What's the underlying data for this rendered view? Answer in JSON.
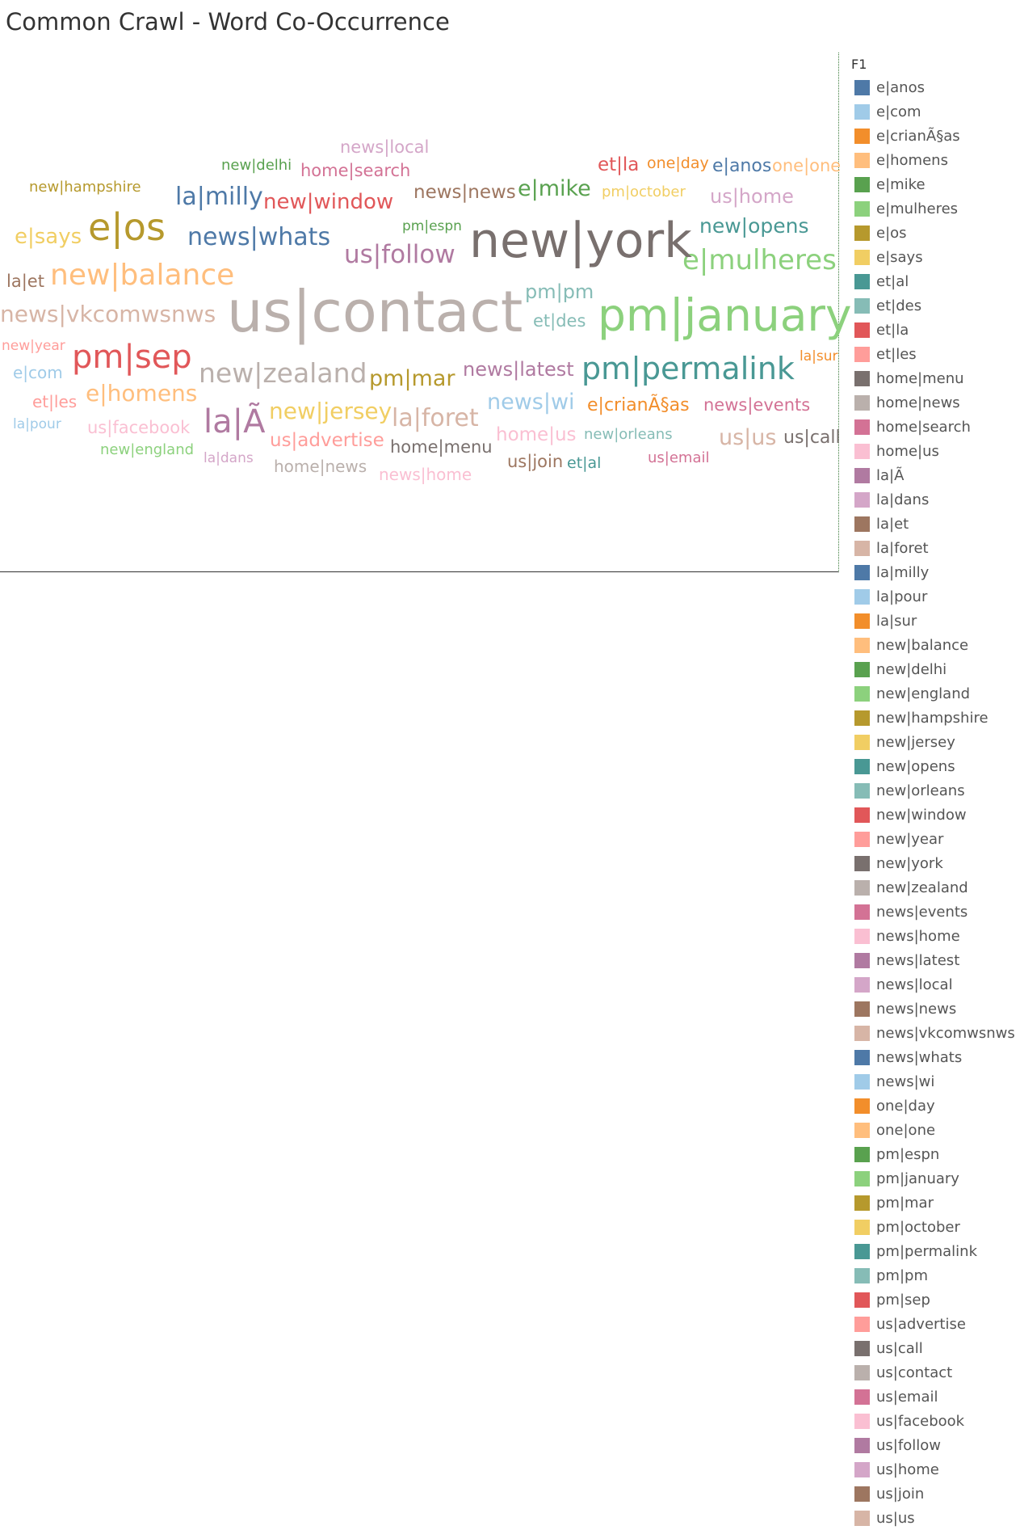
{
  "title": "Common Crawl - Word Co-Occurrence",
  "legend_title": "F1",
  "chart_data": {
    "type": "word-cloud",
    "title": "Common Crawl - Word Co-Occurrence",
    "legend": {
      "title": "F1",
      "placement": "right"
    },
    "words": [
      {
        "text": "e|anos",
        "color": "#4e79a7",
        "weight": 22
      },
      {
        "text": "e|com",
        "color": "#a0cbe8",
        "weight": 20
      },
      {
        "text": "e|crianÃ§as",
        "color": "#f28e2b",
        "weight": 22
      },
      {
        "text": "e|homens",
        "color": "#ffbe7d",
        "weight": 28
      },
      {
        "text": "e|mike",
        "color": "#59a14f",
        "weight": 27
      },
      {
        "text": "e|mulheres",
        "color": "#8cd17d",
        "weight": 34
      },
      {
        "text": "e|os",
        "color": "#b6992d",
        "weight": 46
      },
      {
        "text": "e|says",
        "color": "#f1ce63",
        "weight": 26
      },
      {
        "text": "et|al",
        "color": "#499894",
        "weight": 19
      },
      {
        "text": "et|des",
        "color": "#86bcb6",
        "weight": 21
      },
      {
        "text": "et|la",
        "color": "#e15759",
        "weight": 23
      },
      {
        "text": "et|les",
        "color": "#ff9d9a",
        "weight": 20
      },
      {
        "text": "home|menu",
        "color": "#79706e",
        "weight": 21
      },
      {
        "text": "home|news",
        "color": "#bab0ac",
        "weight": 20
      },
      {
        "text": "home|search",
        "color": "#d37295",
        "weight": 21
      },
      {
        "text": "home|us",
        "color": "#fabfd2",
        "weight": 23
      },
      {
        "text": "la|Ã",
        "color": "#b07aa1",
        "weight": 40
      },
      {
        "text": "la|dans",
        "color": "#d4a6c8",
        "weight": 17
      },
      {
        "text": "la|et",
        "color": "#9d7660",
        "weight": 21
      },
      {
        "text": "la|foret",
        "color": "#d7b5a6",
        "weight": 30
      },
      {
        "text": "la|milly",
        "color": "#4e79a7",
        "weight": 30
      },
      {
        "text": "la|pour",
        "color": "#a0cbe8",
        "weight": 17
      },
      {
        "text": "la|sur",
        "color": "#f28e2b",
        "weight": 17
      },
      {
        "text": "new|balance",
        "color": "#ffbe7d",
        "weight": 36
      },
      {
        "text": "new|delhi",
        "color": "#59a14f",
        "weight": 18
      },
      {
        "text": "new|england",
        "color": "#8cd17d",
        "weight": 18
      },
      {
        "text": "new|hampshire",
        "color": "#b6992d",
        "weight": 18
      },
      {
        "text": "new|jersey",
        "color": "#f1ce63",
        "weight": 28
      },
      {
        "text": "new|opens",
        "color": "#499894",
        "weight": 25
      },
      {
        "text": "new|orleans",
        "color": "#86bcb6",
        "weight": 18
      },
      {
        "text": "new|window",
        "color": "#e15759",
        "weight": 26
      },
      {
        "text": "new|year",
        "color": "#ff9d9a",
        "weight": 17
      },
      {
        "text": "new|york",
        "color": "#79706e",
        "weight": 60
      },
      {
        "text": "new|zealand",
        "color": "#bab0ac",
        "weight": 33
      },
      {
        "text": "news|events",
        "color": "#d37295",
        "weight": 21
      },
      {
        "text": "news|home",
        "color": "#fabfd2",
        "weight": 20
      },
      {
        "text": "news|latest",
        "color": "#b07aa1",
        "weight": 24
      },
      {
        "text": "news|local",
        "color": "#d4a6c8",
        "weight": 21
      },
      {
        "text": "news|news",
        "color": "#9d7660",
        "weight": 23
      },
      {
        "text": "news|vkcomwsnws",
        "color": "#d7b5a6",
        "weight": 28
      },
      {
        "text": "news|whats",
        "color": "#4e79a7",
        "weight": 30
      },
      {
        "text": "news|wi",
        "color": "#a0cbe8",
        "weight": 27
      },
      {
        "text": "one|day",
        "color": "#f28e2b",
        "weight": 19
      },
      {
        "text": "one|one",
        "color": "#ffbe7d",
        "weight": 21
      },
      {
        "text": "pm|espn",
        "color": "#59a14f",
        "weight": 17
      },
      {
        "text": "pm|january",
        "color": "#8cd17d",
        "weight": 55
      },
      {
        "text": "pm|mar",
        "color": "#b6992d",
        "weight": 27
      },
      {
        "text": "pm|october",
        "color": "#f1ce63",
        "weight": 18
      },
      {
        "text": "pm|permalink",
        "color": "#499894",
        "weight": 38
      },
      {
        "text": "pm|pm",
        "color": "#86bcb6",
        "weight": 24
      },
      {
        "text": "pm|sep",
        "color": "#e15759",
        "weight": 40
      },
      {
        "text": "us|advertise",
        "color": "#ff9d9a",
        "weight": 23
      },
      {
        "text": "us|call",
        "color": "#79706e",
        "weight": 22
      },
      {
        "text": "us|contact",
        "color": "#bab0ac",
        "weight": 70
      },
      {
        "text": "us|email",
        "color": "#d37295",
        "weight": 18
      },
      {
        "text": "us|facebook",
        "color": "#fabfd2",
        "weight": 21
      },
      {
        "text": "us|follow",
        "color": "#b07aa1",
        "weight": 31
      },
      {
        "text": "us|home",
        "color": "#d4a6c8",
        "weight": 24
      },
      {
        "text": "us|join",
        "color": "#9d7660",
        "weight": 21
      },
      {
        "text": "us|us",
        "color": "#d7b5a6",
        "weight": 27
      }
    ]
  }
}
